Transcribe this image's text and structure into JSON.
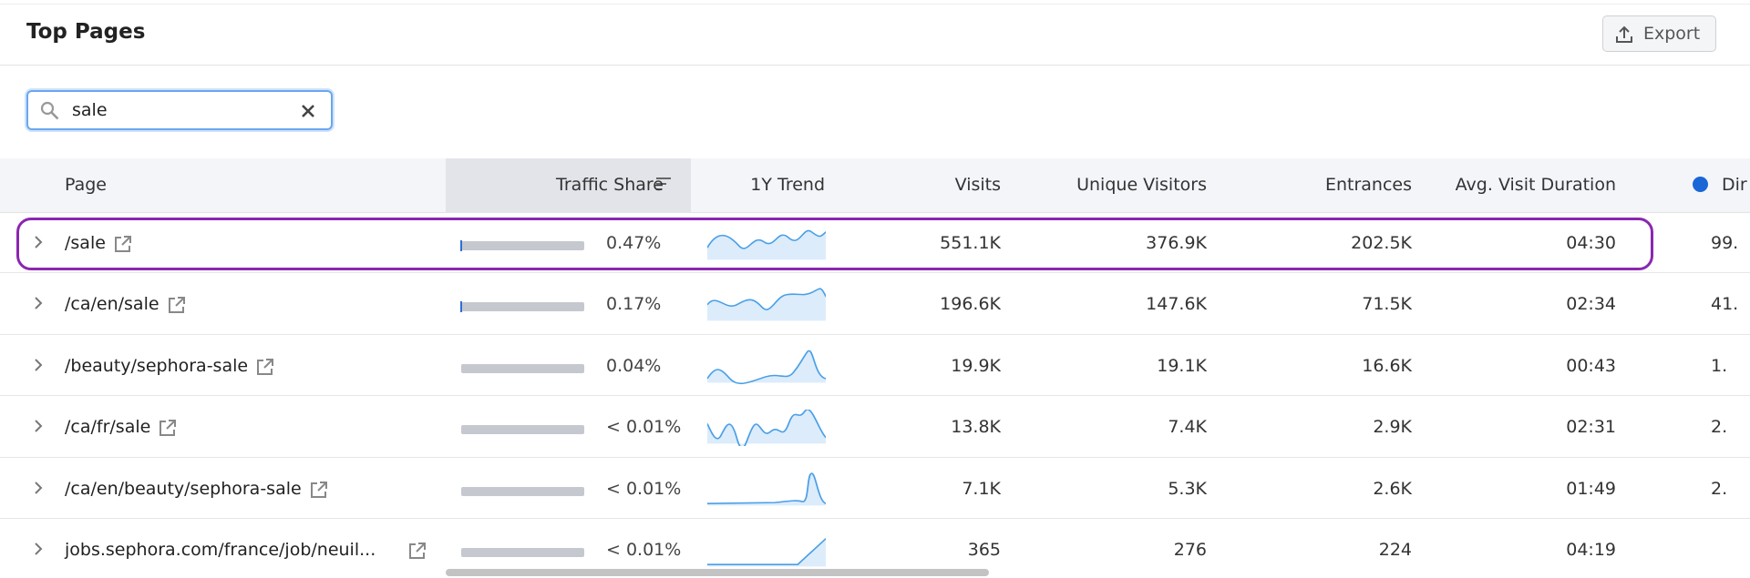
{
  "header": {
    "title": "Top Pages",
    "export": "Export"
  },
  "search": {
    "query": "sale"
  },
  "table": {
    "columns": [
      "Page",
      "Traffic Share",
      "1Y Trend",
      "Visits",
      "Unique Visitors",
      "Entrances",
      "Avg. Visit Duration",
      "Dir"
    ],
    "rows": [
      {
        "page": "/sale",
        "traffic_share": "0.47%",
        "visits": "551.1K",
        "unique_visitors": "376.9K",
        "entrances": "202.5K",
        "avg_visit_duration": "04:30",
        "direct": "99."
      },
      {
        "page": "/ca/en/sale",
        "traffic_share": "0.17%",
        "visits": "196.6K",
        "unique_visitors": "147.6K",
        "entrances": "71.5K",
        "avg_visit_duration": "02:34",
        "direct": "41."
      },
      {
        "page": "/beauty/sephora-sale",
        "traffic_share": "0.04%",
        "visits": "19.9K",
        "unique_visitors": "19.1K",
        "entrances": "16.6K",
        "avg_visit_duration": "00:43",
        "direct": "1."
      },
      {
        "page": "/ca/fr/sale",
        "traffic_share": "< 0.01%",
        "visits": "13.8K",
        "unique_visitors": "7.4K",
        "entrances": "2.9K",
        "avg_visit_duration": "02:31",
        "direct": "2."
      },
      {
        "page": "/ca/en/beauty/sephora-sale",
        "traffic_share": "< 0.01%",
        "visits": "7.1K",
        "unique_visitors": "5.3K",
        "entrances": "2.6K",
        "avg_visit_duration": "01:49",
        "direct": "2."
      },
      {
        "page": "jobs.sephora.com/france/job/neuil...",
        "traffic_share": "< 0.01%",
        "visits": "365",
        "unique_visitors": "276",
        "entrances": "224",
        "avg_visit_duration": "04:19",
        "direct": ""
      }
    ]
  }
}
